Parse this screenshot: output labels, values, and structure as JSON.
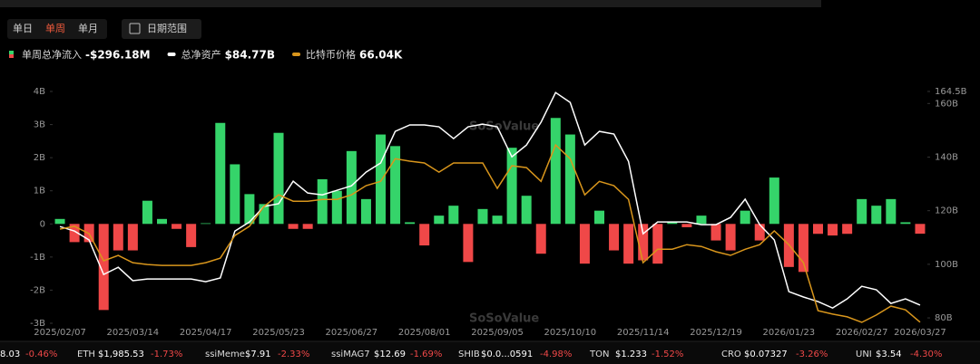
{
  "tabs": [
    "单日",
    "单周",
    "单月"
  ],
  "active_tab": 1,
  "date_button": "日期范围",
  "watermark": [
    "SoSoValue",
    "SoSoValue"
  ],
  "chart_data": {
    "type": "bar_line",
    "categories": [
      "2025/02/07",
      null,
      null,
      null,
      null,
      "2025/03/14",
      null,
      null,
      null,
      null,
      "2025/04/17",
      null,
      null,
      null,
      null,
      "2025/05/23",
      null,
      null,
      null,
      null,
      "2025/06/27",
      null,
      null,
      null,
      null,
      "2025/08/01",
      null,
      null,
      null,
      null,
      "2025/09/05",
      null,
      null,
      null,
      null,
      "2025/10/10",
      null,
      null,
      null,
      null,
      "2025/11/14",
      null,
      null,
      null,
      null,
      "2025/12/19",
      null,
      null,
      null,
      null,
      "2026/01/23",
      null,
      null,
      null,
      null,
      "2026/02/27",
      null,
      null,
      null,
      "2026/03/27"
    ],
    "series": [
      {
        "name": "单周总净流入",
        "type": "bar",
        "color": "#35d46a",
        "negative_color": "#f04848",
        "value_label": "-$296.18M",
        "values": [
          0.15,
          -0.55,
          -0.55,
          -2.6,
          -0.8,
          -0.8,
          0.7,
          0.15,
          -0.15,
          -0.7,
          0.02,
          3.05,
          1.8,
          0.9,
          0.6,
          2.75,
          -0.15,
          -0.15,
          1.35,
          1.0,
          2.2,
          0.75,
          2.7,
          2.35,
          0.05,
          -0.65,
          0.25,
          0.55,
          -1.15,
          0.45,
          0.25,
          2.3,
          0.85,
          -0.9,
          3.2,
          2.7,
          -1.2,
          0.4,
          -0.8,
          -1.2,
          -1.1,
          -1.2,
          0.05,
          -0.1,
          0.25,
          -0.5,
          -0.8,
          0.4,
          -0.5,
          1.4,
          -1.3,
          -1.45,
          -0.3,
          -0.35,
          -0.3,
          0.75,
          0.55,
          0.75,
          0.05,
          -0.29618
        ]
      },
      {
        "name": "总净资产",
        "type": "line",
        "axis": "y2",
        "color": "#ffffff",
        "value_label": "$84.77B",
        "values": [
          114.1,
          112.4,
          109.1,
          96.2,
          98.9,
          93.9,
          94.5,
          94.5,
          94.5,
          94.5,
          93.5,
          94.9,
          112.4,
          115.8,
          121.6,
          122.6,
          131.0,
          126.6,
          125.9,
          127.6,
          129.3,
          134.4,
          137.8,
          149.6,
          152.0,
          152.0,
          151.3,
          146.9,
          151.3,
          152.3,
          151.3,
          140.1,
          144.5,
          153.0,
          164.1,
          160.4,
          144.5,
          149.6,
          148.6,
          138.4,
          111.4,
          115.8,
          115.8,
          115.8,
          114.8,
          114.8,
          117.5,
          124.3,
          114.8,
          109.1,
          89.8,
          87.8,
          86.1,
          83.7,
          87.1,
          91.8,
          90.5,
          85.4,
          87.1,
          84.77
        ]
      },
      {
        "name": "比特币价格",
        "type": "line",
        "axis": "y3",
        "color": "#d9961c",
        "value_label": "66.04K",
        "values": [
          96.5,
          97.4,
          95.0,
          86.1,
          87.9,
          85.5,
          84.9,
          84.6,
          84.6,
          84.6,
          85.5,
          87.0,
          94.4,
          97.4,
          103.9,
          107.7,
          105.6,
          105.6,
          106.2,
          106.2,
          107.7,
          110.7,
          112.1,
          119.5,
          118.7,
          118.1,
          115.1,
          118.1,
          118.1,
          118.1,
          109.8,
          117.2,
          116.6,
          112.1,
          124.0,
          119.5,
          107.7,
          112.1,
          110.7,
          106.2,
          85.5,
          89.9,
          89.9,
          91.4,
          90.8,
          89.1,
          87.9,
          89.9,
          91.4,
          95.9,
          91.4,
          85.5,
          69.8,
          68.7,
          67.8,
          66.0,
          68.4,
          71.3,
          70.1,
          66.04
        ]
      }
    ],
    "ylim": [
      -3,
      4
    ],
    "yticks": [
      {
        "value": 4,
        "label": "4B"
      },
      {
        "value": 3,
        "label": "3B"
      },
      {
        "value": 2,
        "label": "2B"
      },
      {
        "value": 1,
        "label": "1B"
      },
      0,
      {
        "value": -1,
        "label": "-1B"
      },
      {
        "value": -2,
        "label": "-2B"
      },
      {
        "value": -3,
        "label": "-3B"
      }
    ],
    "y2lim": [
      78,
      164.5
    ],
    "y2ticks": [
      {
        "value": 164.5,
        "label": "164.5B"
      },
      {
        "value": 160,
        "label": "160B"
      },
      {
        "value": 140,
        "label": "140B"
      },
      {
        "value": 120,
        "label": "120B"
      },
      {
        "value": 100,
        "label": "100B"
      },
      {
        "value": 80,
        "label": "80B"
      }
    ],
    "y3lim": [
      65.7,
      141.5
    ]
  },
  "ticker": [
    {
      "price": "8.03",
      "change": "-0.46%"
    },
    {
      "symbol": "ETH",
      "price": "$1,985.53",
      "change": "-1.73%"
    },
    {
      "symbol": "ssiMeme",
      "price": "$7.91",
      "change": "-2.33%"
    },
    {
      "symbol": "ssiMAG7",
      "price": "$12.69",
      "change": "-1.69%"
    },
    {
      "symbol": "SHIB",
      "price": "$0.0...0591",
      "change": "-4.98%"
    },
    {
      "symbol": "TON",
      "price": "$1.233",
      "change": "-1.52%"
    },
    {
      "symbol": "CRO",
      "price": "$0.07327",
      "change": "-3.26%"
    },
    {
      "symbol": "UNI",
      "price": "$3.54",
      "change": "-4.30%"
    }
  ]
}
